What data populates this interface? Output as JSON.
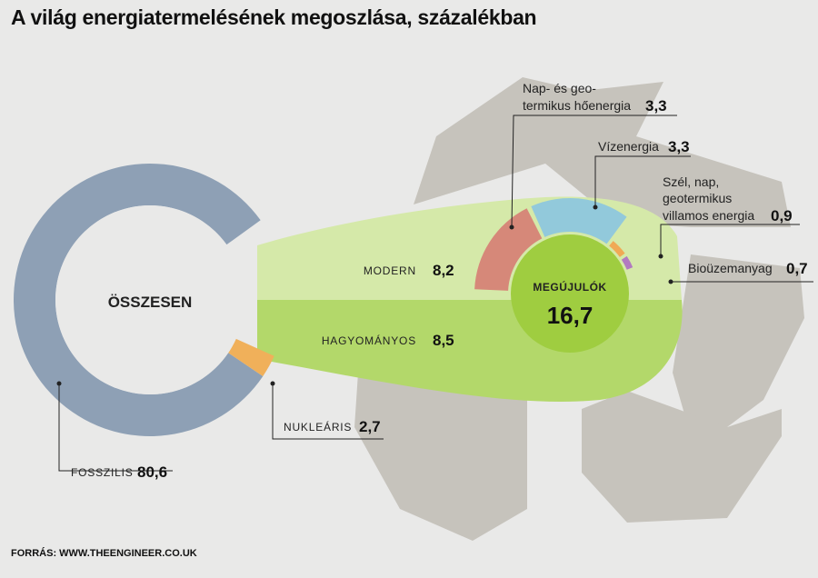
{
  "title": "A világ energiatermelésének megoszlása, százalékban",
  "source": "FORRÁS: WWW.THEENGINEER.CO.UK",
  "colors": {
    "background": "#e9e9e8",
    "fossil": "#8ea0b5",
    "nuclear": "#f0b05a",
    "funnel_light": "#d5e9a9",
    "funnel_dark": "#b3d86a",
    "renewable_center": "#9fcd40",
    "recycle": "#c6c3bc",
    "geothermal_heat": "#d68879",
    "hydro": "#92c9db",
    "wind_solar": "#f0a955",
    "biofuel": "#b27ac0"
  },
  "chart_data": {
    "type": "pie",
    "title": "A világ energiatermelésének megoszlása, százalékban",
    "total_label": "ÖSSZESEN",
    "main": [
      {
        "label": "FOSSZILIS",
        "value": 80.6,
        "value_text": "80,6"
      },
      {
        "label": "NUKLEÁRIS",
        "value": 2.7,
        "value_text": "2,7"
      },
      {
        "label": "MEGÚJULÓK",
        "value": 16.7,
        "value_text": "16,7"
      }
    ],
    "renewables_split": [
      {
        "label": "MODERN",
        "value": 8.2,
        "value_text": "8,2"
      },
      {
        "label": "HAGYOMÁNYOS",
        "value": 8.5,
        "value_text": "8,5"
      }
    ],
    "modern_breakdown": [
      {
        "label_lines": [
          "Nap- és geo-",
          "termikus hőenergia"
        ],
        "value": 3.3,
        "value_text": "3,3"
      },
      {
        "label_lines": [
          "Vízenergia"
        ],
        "value": 3.3,
        "value_text": "3,3"
      },
      {
        "label_lines": [
          "Szél, nap,",
          "geotermikus",
          "villamos energia"
        ],
        "value": 0.9,
        "value_text": "0,9"
      },
      {
        "label_lines": [
          "Bioüzemanyag"
        ],
        "value": 0.7,
        "value_text": "0,7"
      }
    ]
  }
}
